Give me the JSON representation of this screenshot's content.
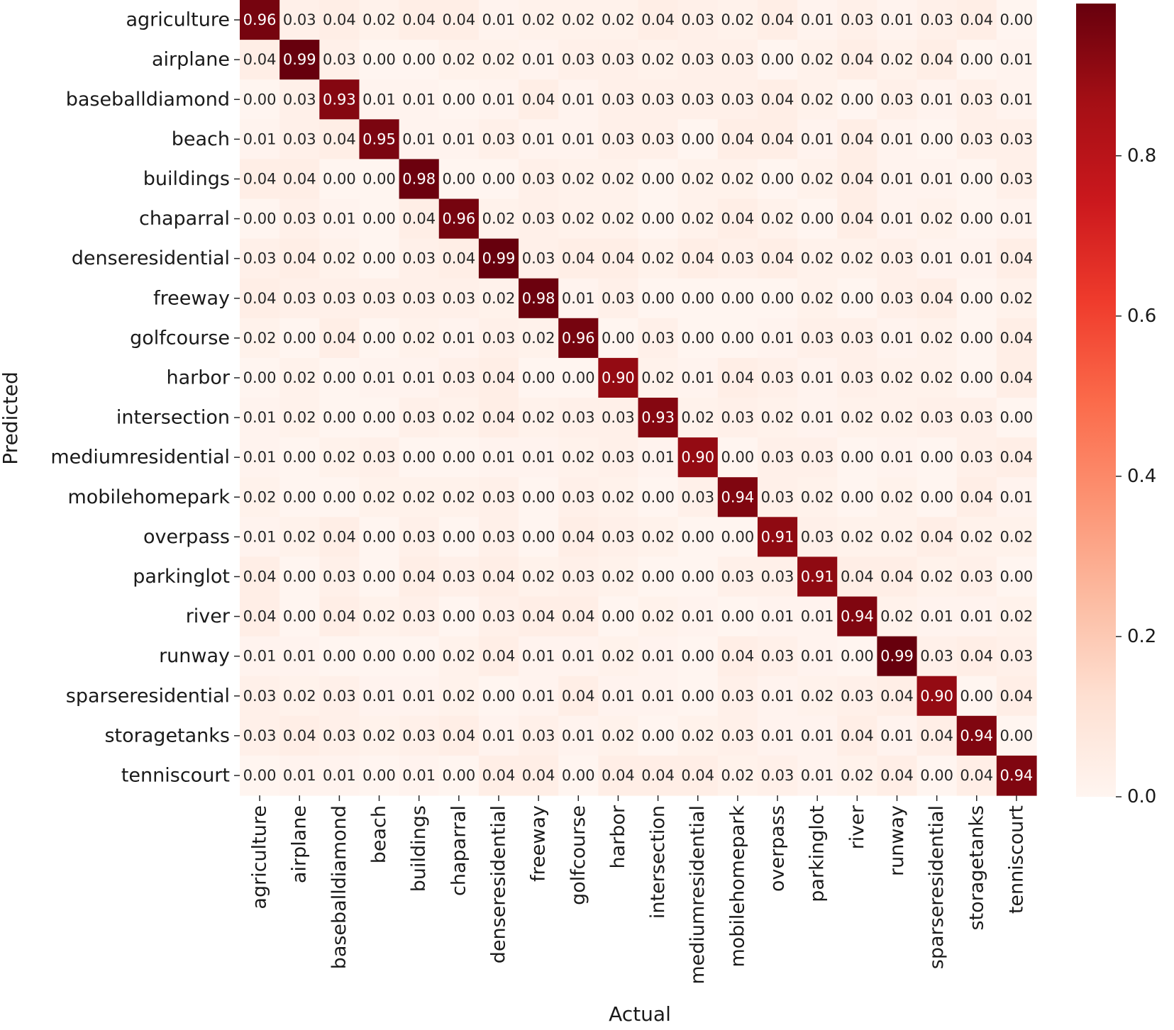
{
  "chart_data": {
    "type": "heatmap",
    "xlabel": "Actual",
    "ylabel": "Predicted",
    "categories": [
      "agriculture",
      "airplane",
      "baseballdiamond",
      "beach",
      "buildings",
      "chaparral",
      "denseresidential",
      "freeway",
      "golfcourse",
      "harbor",
      "intersection",
      "mediumresidential",
      "mobilehomepark",
      "overpass",
      "parkinglot",
      "river",
      "runway",
      "sparseresidential",
      "storagetanks",
      "tenniscourt"
    ],
    "values": [
      [
        0.96,
        0.03,
        0.04,
        0.02,
        0.04,
        0.04,
        0.01,
        0.02,
        0.02,
        0.02,
        0.04,
        0.03,
        0.02,
        0.04,
        0.01,
        0.03,
        0.01,
        0.03,
        0.04,
        0.0
      ],
      [
        0.04,
        0.99,
        0.03,
        0.0,
        0.0,
        0.02,
        0.02,
        0.01,
        0.03,
        0.03,
        0.02,
        0.03,
        0.03,
        0.0,
        0.02,
        0.04,
        0.02,
        0.04,
        0.0,
        0.01
      ],
      [
        0.0,
        0.03,
        0.93,
        0.01,
        0.01,
        0.0,
        0.01,
        0.04,
        0.01,
        0.03,
        0.03,
        0.03,
        0.03,
        0.04,
        0.02,
        0.0,
        0.03,
        0.01,
        0.03,
        0.01
      ],
      [
        0.01,
        0.03,
        0.04,
        0.95,
        0.01,
        0.01,
        0.03,
        0.01,
        0.01,
        0.03,
        0.03,
        0.0,
        0.04,
        0.04,
        0.01,
        0.04,
        0.01,
        0.0,
        0.03,
        0.03
      ],
      [
        0.04,
        0.04,
        0.0,
        0.0,
        0.98,
        0.0,
        0.0,
        0.03,
        0.02,
        0.02,
        0.0,
        0.02,
        0.02,
        0.0,
        0.02,
        0.04,
        0.01,
        0.01,
        0.0,
        0.03
      ],
      [
        0.0,
        0.03,
        0.01,
        0.0,
        0.04,
        0.96,
        0.02,
        0.03,
        0.02,
        0.02,
        0.0,
        0.02,
        0.04,
        0.02,
        0.0,
        0.04,
        0.01,
        0.02,
        0.0,
        0.01
      ],
      [
        0.03,
        0.04,
        0.02,
        0.0,
        0.03,
        0.04,
        0.99,
        0.03,
        0.04,
        0.04,
        0.02,
        0.04,
        0.03,
        0.04,
        0.02,
        0.02,
        0.03,
        0.01,
        0.01,
        0.04
      ],
      [
        0.04,
        0.03,
        0.03,
        0.03,
        0.03,
        0.03,
        0.02,
        0.98,
        0.01,
        0.03,
        0.0,
        0.0,
        0.0,
        0.0,
        0.02,
        0.0,
        0.03,
        0.04,
        0.0,
        0.02
      ],
      [
        0.02,
        0.0,
        0.04,
        0.0,
        0.02,
        0.01,
        0.03,
        0.02,
        0.96,
        0.0,
        0.03,
        0.0,
        0.0,
        0.01,
        0.03,
        0.03,
        0.01,
        0.02,
        0.0,
        0.04
      ],
      [
        0.0,
        0.02,
        0.0,
        0.01,
        0.01,
        0.03,
        0.04,
        0.0,
        0.0,
        0.9,
        0.02,
        0.01,
        0.04,
        0.03,
        0.01,
        0.03,
        0.02,
        0.02,
        0.0,
        0.04
      ],
      [
        0.01,
        0.02,
        0.0,
        0.0,
        0.03,
        0.02,
        0.04,
        0.02,
        0.03,
        0.03,
        0.93,
        0.02,
        0.03,
        0.02,
        0.01,
        0.02,
        0.02,
        0.03,
        0.03,
        0.0
      ],
      [
        0.01,
        0.0,
        0.02,
        0.03,
        0.0,
        0.0,
        0.01,
        0.01,
        0.02,
        0.03,
        0.01,
        0.9,
        0.0,
        0.03,
        0.03,
        0.0,
        0.01,
        0.0,
        0.03,
        0.04
      ],
      [
        0.02,
        0.0,
        0.0,
        0.02,
        0.02,
        0.02,
        0.03,
        0.0,
        0.03,
        0.02,
        0.0,
        0.03,
        0.94,
        0.03,
        0.02,
        0.0,
        0.02,
        0.0,
        0.04,
        0.01
      ],
      [
        0.01,
        0.02,
        0.04,
        0.0,
        0.03,
        0.0,
        0.03,
        0.0,
        0.04,
        0.03,
        0.02,
        0.0,
        0.0,
        0.91,
        0.03,
        0.02,
        0.02,
        0.04,
        0.02,
        0.02
      ],
      [
        0.04,
        0.0,
        0.03,
        0.0,
        0.04,
        0.03,
        0.04,
        0.02,
        0.03,
        0.02,
        0.0,
        0.0,
        0.03,
        0.03,
        0.91,
        0.04,
        0.04,
        0.02,
        0.03,
        0.0
      ],
      [
        0.04,
        0.0,
        0.04,
        0.02,
        0.03,
        0.0,
        0.03,
        0.04,
        0.04,
        0.0,
        0.02,
        0.01,
        0.0,
        0.01,
        0.01,
        0.94,
        0.02,
        0.01,
        0.01,
        0.02
      ],
      [
        0.01,
        0.01,
        0.0,
        0.0,
        0.0,
        0.02,
        0.04,
        0.01,
        0.01,
        0.02,
        0.01,
        0.0,
        0.04,
        0.03,
        0.01,
        0.0,
        0.99,
        0.03,
        0.04,
        0.03
      ],
      [
        0.03,
        0.02,
        0.03,
        0.01,
        0.01,
        0.02,
        0.0,
        0.01,
        0.04,
        0.01,
        0.01,
        0.0,
        0.03,
        0.01,
        0.02,
        0.03,
        0.04,
        0.9,
        0.0,
        0.04
      ],
      [
        0.03,
        0.04,
        0.03,
        0.02,
        0.03,
        0.04,
        0.01,
        0.03,
        0.01,
        0.02,
        0.0,
        0.02,
        0.03,
        0.01,
        0.01,
        0.04,
        0.01,
        0.04,
        0.94,
        0.0
      ],
      [
        0.0,
        0.01,
        0.01,
        0.0,
        0.01,
        0.0,
        0.04,
        0.04,
        0.0,
        0.04,
        0.04,
        0.04,
        0.02,
        0.03,
        0.01,
        0.02,
        0.04,
        0.0,
        0.04,
        0.94
      ]
    ],
    "colormap": "Reds",
    "vmin": 0.0,
    "vmax": 0.99,
    "colorbar_ticks": [
      0.0,
      0.2,
      0.4,
      0.6,
      0.8
    ],
    "colorbar_tick_labels": [
      "0.0",
      "0.2",
      "0.4",
      "0.6",
      "0.8"
    ],
    "annotation_format": "2 decimals"
  },
  "colors": {
    "low": "#fff5f0",
    "high": "#67000d",
    "text_dark": "#262626",
    "text_light": "#ffffff"
  }
}
